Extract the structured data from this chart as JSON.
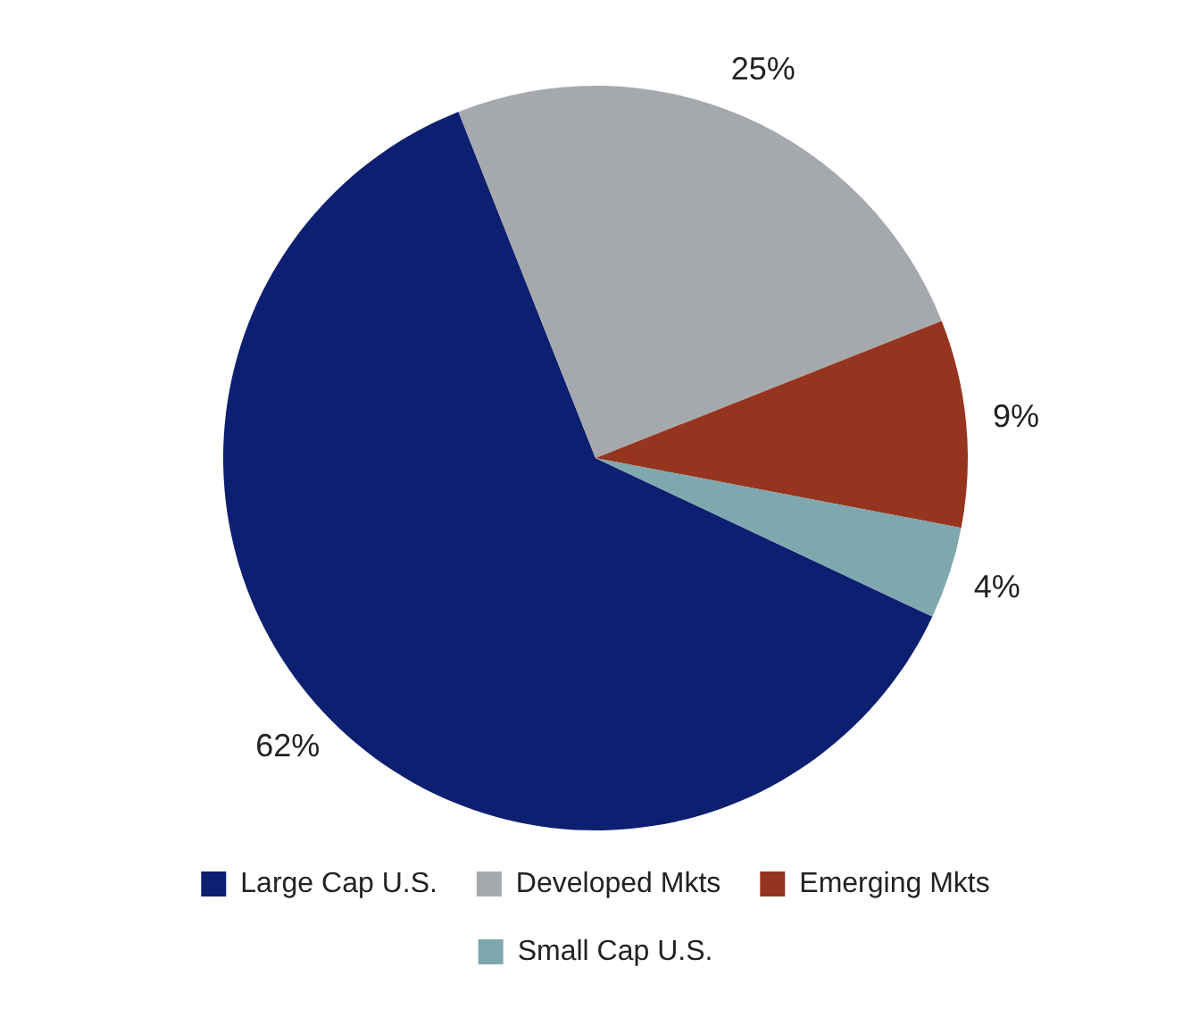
{
  "chart_data": {
    "type": "pie",
    "categories": [
      "Large Cap U.S.",
      "Developed Mkts",
      "Emerging Mkts",
      "Small Cap U.S."
    ],
    "values": [
      62,
      25,
      9,
      4
    ],
    "colors": [
      "#0d1f70",
      "#a5a9ad",
      "#96351f",
      "#7ea7ae"
    ],
    "value_labels": [
      "62%",
      "25%",
      "9%",
      "4%"
    ],
    "legend": "bottom"
  }
}
